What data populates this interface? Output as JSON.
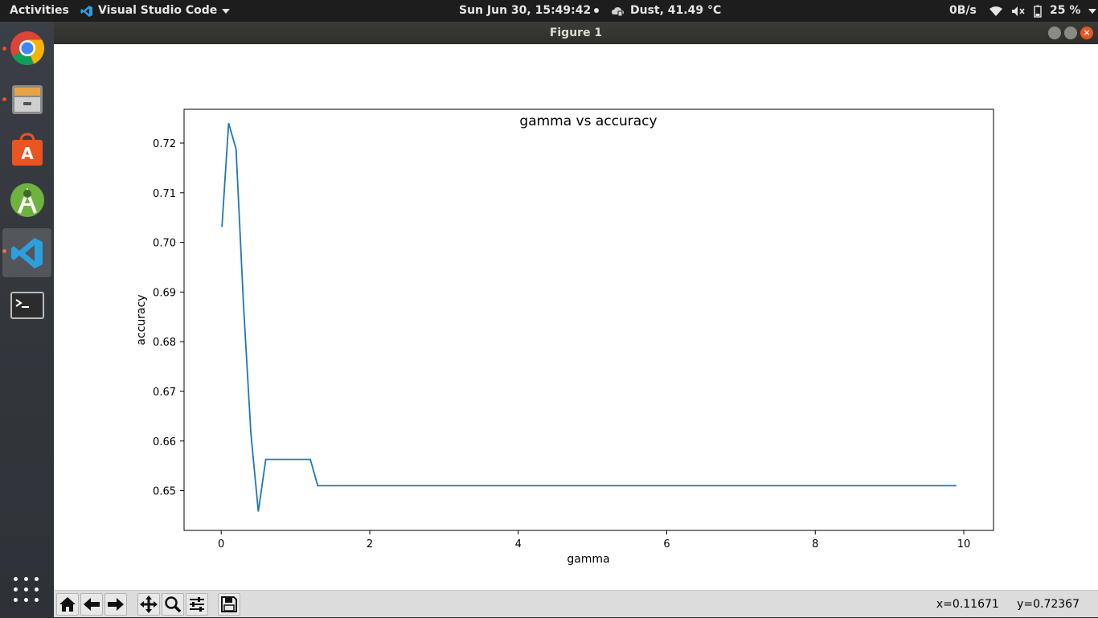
{
  "topbar": {
    "activities": "Activities",
    "app_name": "Visual Studio Code",
    "clock": "Sun Jun 30, 15:49:42",
    "weather": "Dust, 41.49 °C",
    "net_speed": "0B/s",
    "battery": "25 %"
  },
  "window": {
    "title": "Figure 1",
    "close_glyph": "×"
  },
  "dock": {
    "items": [
      {
        "name": "chrome-icon"
      },
      {
        "name": "files-icon"
      },
      {
        "name": "software-icon"
      },
      {
        "name": "android-studio-icon"
      },
      {
        "name": "vscode-icon"
      },
      {
        "name": "terminal-icon"
      }
    ]
  },
  "toolbar": {
    "coords_x": "x=0.11671",
    "coords_y": "y=0.72367",
    "tools": [
      "home-icon",
      "back-arrow-icon",
      "forward-arrow-icon",
      "pan-icon",
      "zoom-icon",
      "configure-subplots-icon",
      "save-icon"
    ]
  },
  "chart_data": {
    "type": "line",
    "title": "gamma vs accuracy",
    "xlabel": "gamma",
    "ylabel": "accuracy",
    "xlim": [
      -0.5,
      10.4
    ],
    "ylim": [
      0.642,
      0.7268
    ],
    "xticks": [
      0,
      2,
      4,
      6,
      8,
      10
    ],
    "xtick_labels": [
      "0",
      "2",
      "4",
      "6",
      "8",
      "10"
    ],
    "yticks": [
      0.65,
      0.66,
      0.67,
      0.68,
      0.69,
      0.7,
      0.71,
      0.72
    ],
    "ytick_labels": [
      "0.65",
      "0.66",
      "0.67",
      "0.68",
      "0.69",
      "0.70",
      "0.71",
      "0.72"
    ],
    "grid": false,
    "color": "#1f77b4",
    "x": [
      0.01,
      0.1,
      0.2,
      0.3,
      0.4,
      0.5,
      0.6,
      0.7,
      0.8,
      0.9,
      1.0,
      1.1,
      1.2,
      1.3,
      1.4,
      2.0,
      3.0,
      4.0,
      5.0,
      6.0,
      7.0,
      8.0,
      9.0,
      9.9
    ],
    "y": [
      0.7031,
      0.724,
      0.7188,
      0.6875,
      0.6615,
      0.6458,
      0.6563,
      0.6563,
      0.6563,
      0.6563,
      0.6563,
      0.6563,
      0.6563,
      0.651,
      0.651,
      0.651,
      0.651,
      0.651,
      0.651,
      0.651,
      0.651,
      0.651,
      0.651,
      0.651
    ]
  }
}
